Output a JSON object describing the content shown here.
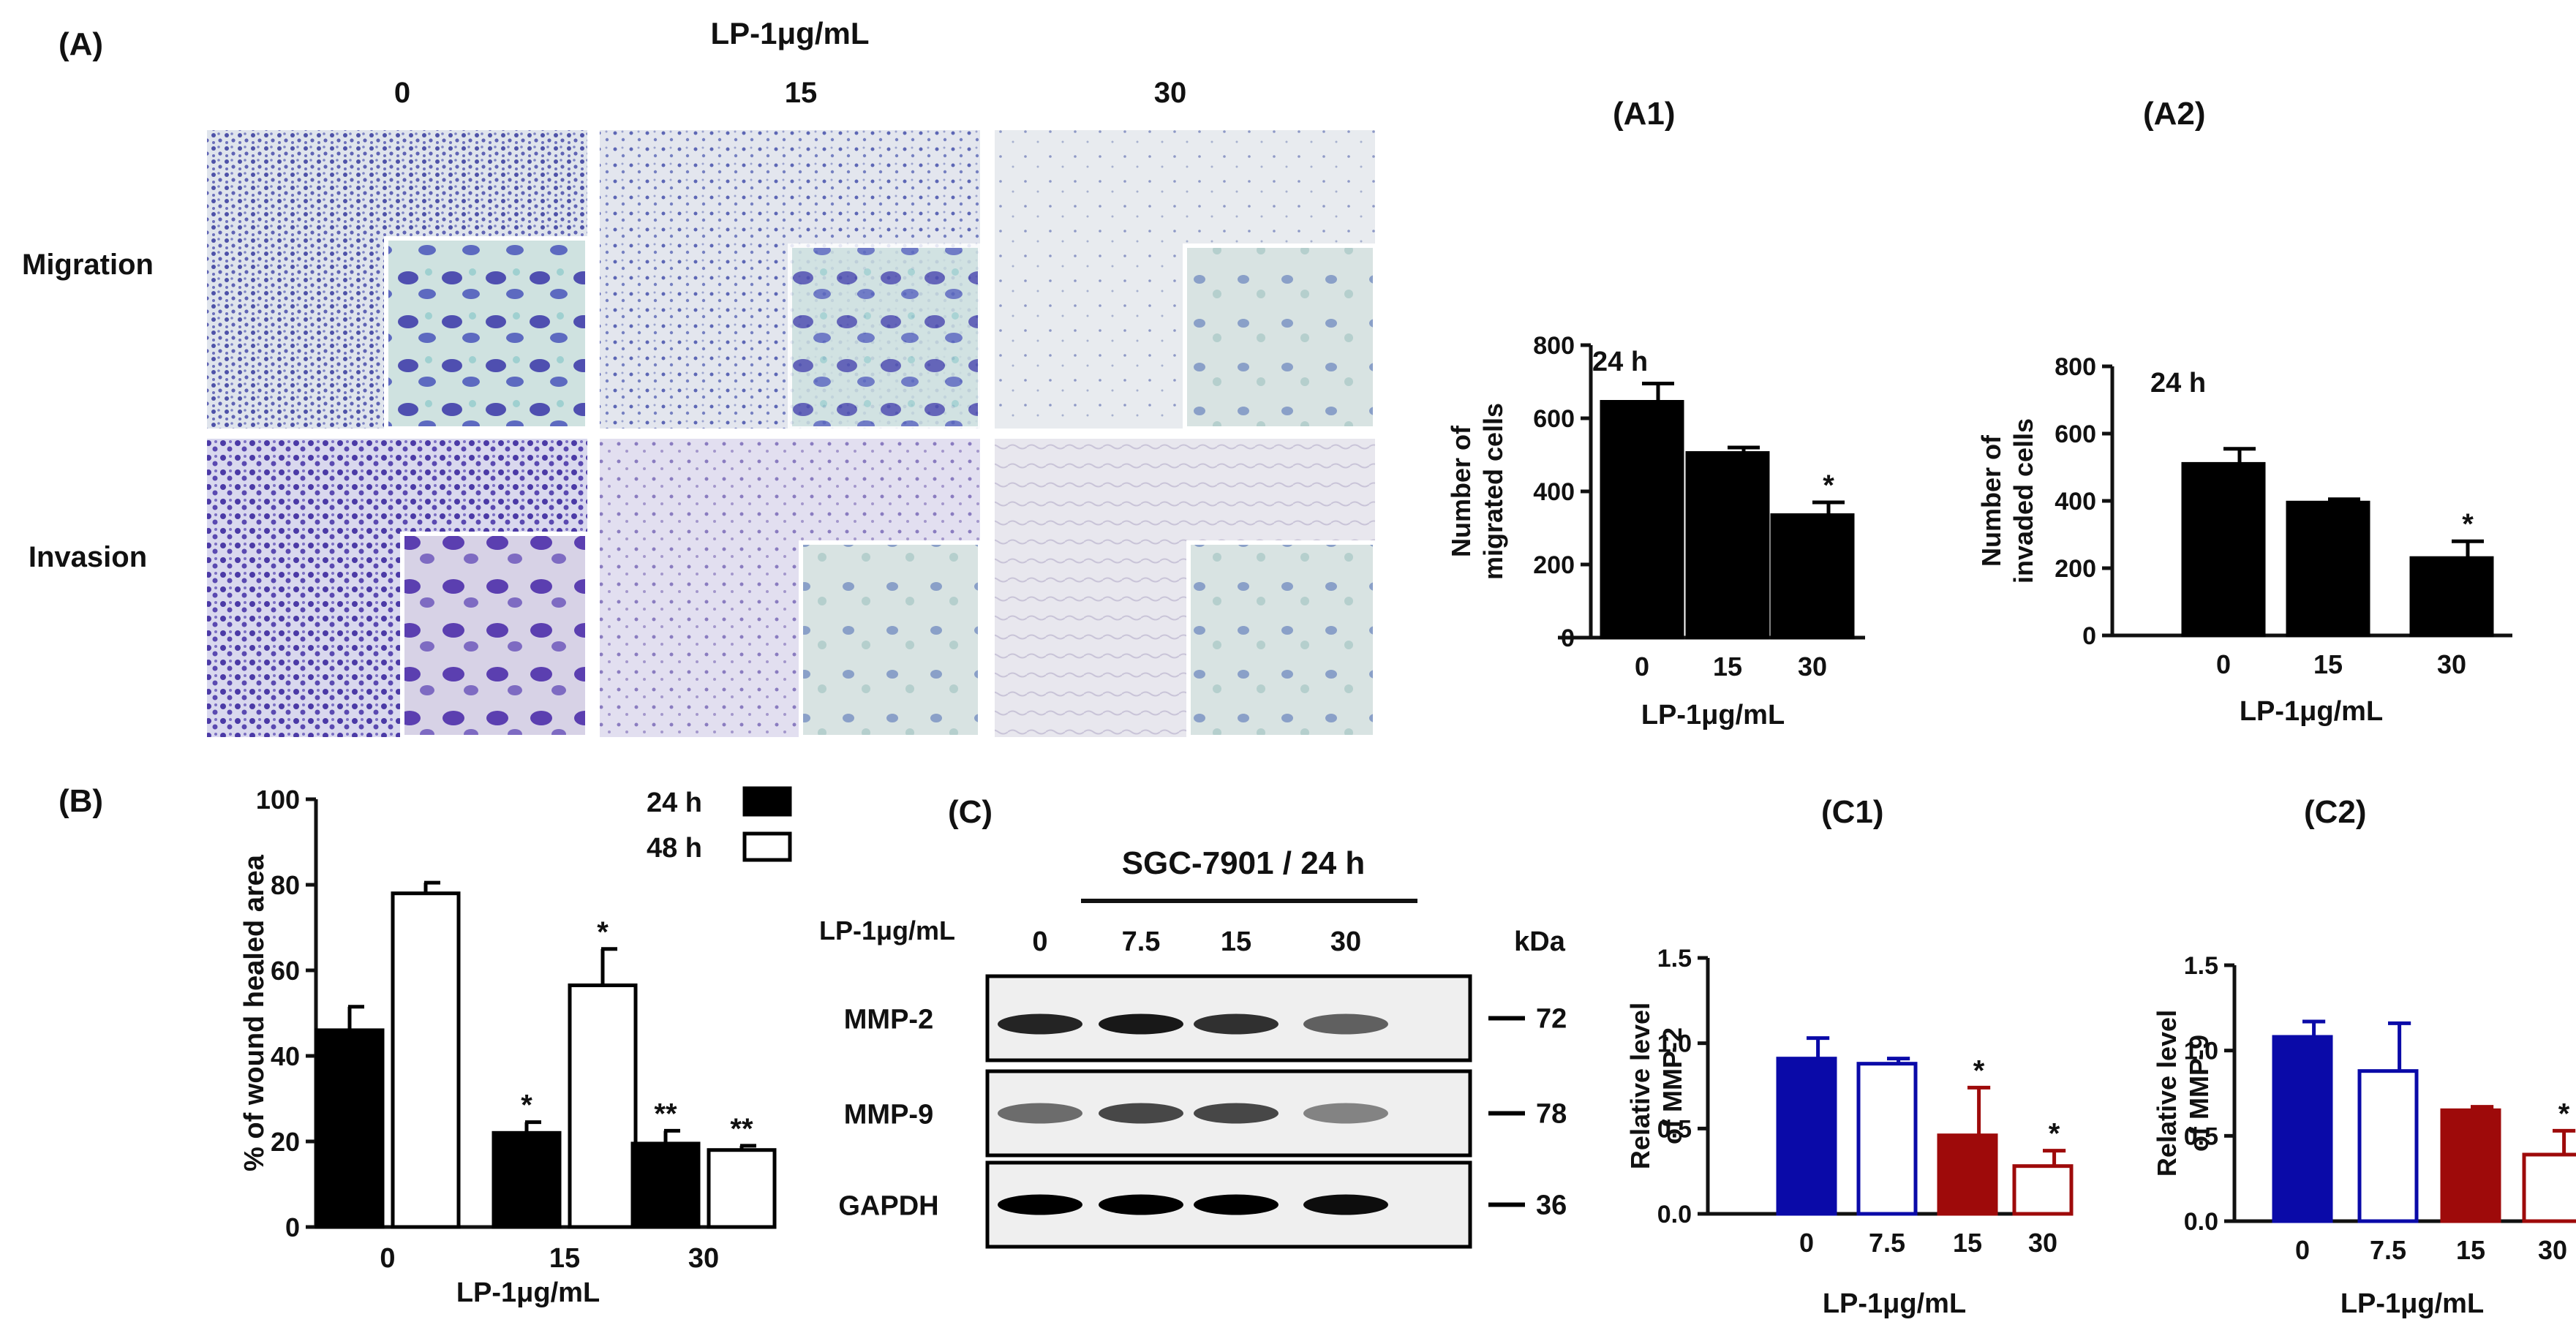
{
  "panel_A": {
    "panel_label": "(A)",
    "treatment_label": "LP-1μg/mL",
    "doses": [
      "0",
      "15",
      "30"
    ],
    "rows": [
      "Migration",
      "Invasion"
    ],
    "stain_colors": {
      "migration": [
        "#5b5fb0",
        "#6a74bb",
        "#9aa6c8"
      ],
      "invasion": [
        "#5a49b1",
        "#9c8ec4",
        "#b7afd0"
      ],
      "background": [
        "#dfe4ec",
        "#e3e6ee",
        "#e8ebef"
      ]
    }
  },
  "chart_data": [
    {
      "id": "A1",
      "panel_label": "(A1)",
      "type": "bar",
      "annotation": "24 h",
      "categories": [
        "0",
        "15",
        "30"
      ],
      "values": [
        645,
        505,
        335
      ],
      "errors": [
        50,
        15,
        35
      ],
      "significance": [
        "",
        "",
        "*"
      ],
      "colors": [
        "#000000",
        "#000000",
        "#000000"
      ],
      "ylabel_lines": [
        "Number of",
        "migrated cells"
      ],
      "xlabel": "LP-1μg/mL",
      "ylim": [
        0,
        800
      ],
      "yticks": [
        "0",
        "200",
        "400",
        "600",
        "800"
      ]
    },
    {
      "id": "A2",
      "panel_label": "(A2)",
      "type": "bar",
      "annotation": "24 h",
      "categories": [
        "0",
        "15",
        "30"
      ],
      "values": [
        510,
        395,
        230
      ],
      "errors": [
        45,
        10,
        50
      ],
      "significance": [
        "",
        "",
        "*"
      ],
      "colors": [
        "#000000",
        "#000000",
        "#000000"
      ],
      "ylabel_lines": [
        "Number of",
        "invaded cells"
      ],
      "xlabel": "LP-1μg/mL",
      "ylim": [
        0,
        800
      ],
      "yticks": [
        "0",
        "200",
        "400",
        "600",
        "800"
      ]
    },
    {
      "id": "B",
      "panel_label": "(B)",
      "type": "bar",
      "categories": [
        "0",
        "15",
        "30"
      ],
      "series": [
        {
          "name": "24 h",
          "values": [
            46,
            22,
            19.5
          ],
          "errors": [
            5.5,
            2.5,
            3
          ],
          "significance": [
            "",
            "*",
            "**"
          ],
          "fill": "#000000"
        },
        {
          "name": "48 h",
          "values": [
            78,
            56.5,
            18
          ],
          "errors": [
            2.5,
            8.5,
            1
          ],
          "significance": [
            "",
            "*",
            "**"
          ],
          "fill": "#ffffff"
        }
      ],
      "ylabel": "% of wound healed area",
      "xlabel": "LP-1μg/mL",
      "ylim": [
        0,
        100
      ],
      "yticks": [
        "0",
        "20",
        "40",
        "60",
        "80",
        "100"
      ],
      "legend_position": "top-right"
    },
    {
      "id": "C1",
      "panel_label": "(C1)",
      "type": "bar",
      "categories": [
        "0",
        "7.5",
        "15",
        "30"
      ],
      "values": [
        0.91,
        0.88,
        0.46,
        0.28
      ],
      "errors": [
        0.12,
        0.03,
        0.28,
        0.09
      ],
      "significance": [
        "",
        "",
        "*",
        "*"
      ],
      "styles": [
        {
          "fill": "#0a0aa8",
          "stroke": "#0a0aa8"
        },
        {
          "fill": "#ffffff",
          "stroke": "#0a0aa8"
        },
        {
          "fill": "#9e0a0a",
          "stroke": "#9e0a0a"
        },
        {
          "fill": "#ffffff",
          "stroke": "#9e0a0a"
        }
      ],
      "ylabel_lines": [
        "Relative level",
        "of MMP-2"
      ],
      "xlabel": "LP-1μg/mL",
      "ylim": [
        0,
        1.5
      ],
      "yticks": [
        "0.0",
        "0.5",
        "1.0",
        "1.5"
      ]
    },
    {
      "id": "C2",
      "panel_label": "(C2)",
      "type": "bar",
      "categories": [
        "0",
        "7.5",
        "15",
        "30"
      ],
      "values": [
        1.08,
        0.88,
        0.65,
        0.39
      ],
      "errors": [
        0.09,
        0.28,
        0.02,
        0.14
      ],
      "significance": [
        "",
        "",
        "",
        "*"
      ],
      "styles": [
        {
          "fill": "#0a0aa8",
          "stroke": "#0a0aa8"
        },
        {
          "fill": "#ffffff",
          "stroke": "#0a0aa8"
        },
        {
          "fill": "#9e0a0a",
          "stroke": "#9e0a0a"
        },
        {
          "fill": "#ffffff",
          "stroke": "#9e0a0a"
        }
      ],
      "ylabel_lines": [
        "Relative level",
        "of MMP-9"
      ],
      "xlabel": "LP-1μg/mL",
      "ylim": [
        0,
        1.5
      ],
      "yticks": [
        "0.0",
        "0.5",
        "1.0",
        "1.5"
      ]
    }
  ],
  "panel_C": {
    "panel_label": "(C)",
    "title": "SGC-7901 / 24 h",
    "dose_label": "LP-1μg/mL",
    "doses": [
      "0",
      "7.5",
      "15",
      "30"
    ],
    "kda_label": "kDa",
    "blots": [
      {
        "name": "MMP-2",
        "kda": "72",
        "intensities": [
          0.85,
          0.9,
          0.8,
          0.6
        ]
      },
      {
        "name": "MMP-9",
        "kda": "78",
        "intensities": [
          0.55,
          0.7,
          0.7,
          0.45
        ]
      },
      {
        "name": "GAPDH",
        "kda": "36",
        "intensities": [
          1.0,
          1.0,
          1.0,
          0.95
        ]
      }
    ]
  }
}
